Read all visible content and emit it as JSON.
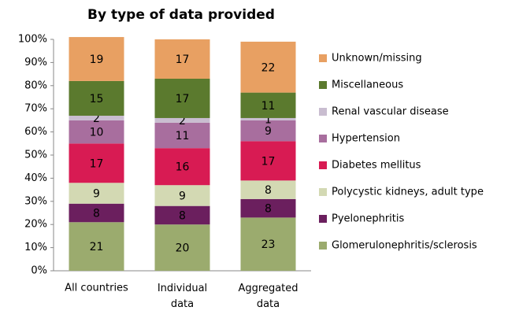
{
  "chart_data": {
    "type": "stacked_bar",
    "title": "By type of data provided",
    "categories": [
      "All countries",
      "Individual data",
      "Aggregated data"
    ],
    "series": [
      {
        "name": "Glomerulonephritis/sclerosis",
        "color": "#9bab6e",
        "values": [
          21,
          20,
          23
        ]
      },
      {
        "name": "Pyelonephritis",
        "color": "#6b1f5e",
        "values": [
          8,
          8,
          8
        ]
      },
      {
        "name": "Polycystic kidneys, adult type",
        "color": "#d3d9b3",
        "values": [
          9,
          9,
          8
        ]
      },
      {
        "name": "Diabetes mellitus",
        "color": "#d81b53",
        "values": [
          17,
          16,
          17
        ]
      },
      {
        "name": "Hypertension",
        "color": "#a86e9e",
        "values": [
          10,
          11,
          9
        ]
      },
      {
        "name": "Renal vascular disease",
        "color": "#c9bdd0",
        "values": [
          2,
          2,
          1
        ]
      },
      {
        "name": "Miscellaneous",
        "color": "#5b7a2e",
        "values": [
          15,
          17,
          11
        ]
      },
      {
        "name": "Unknown/missing",
        "color": "#e8a062",
        "values": [
          19,
          17,
          22
        ]
      }
    ],
    "ylim": [
      0,
      100
    ],
    "yticks": [
      {
        "value": 0,
        "label": "0%"
      },
      {
        "value": 10,
        "label": "10%"
      },
      {
        "value": 20,
        "label": "20%"
      },
      {
        "value": 30,
        "label": "30%"
      },
      {
        "value": 40,
        "label": "40%"
      },
      {
        "value": 50,
        "label": "50%"
      },
      {
        "value": 60,
        "label": "60%"
      },
      {
        "value": 70,
        "label": "70%"
      },
      {
        "value": 80,
        "label": "80%"
      },
      {
        "value": 90,
        "label": "90%"
      },
      {
        "value": 100,
        "label": "100%"
      }
    ],
    "legend": "right"
  }
}
